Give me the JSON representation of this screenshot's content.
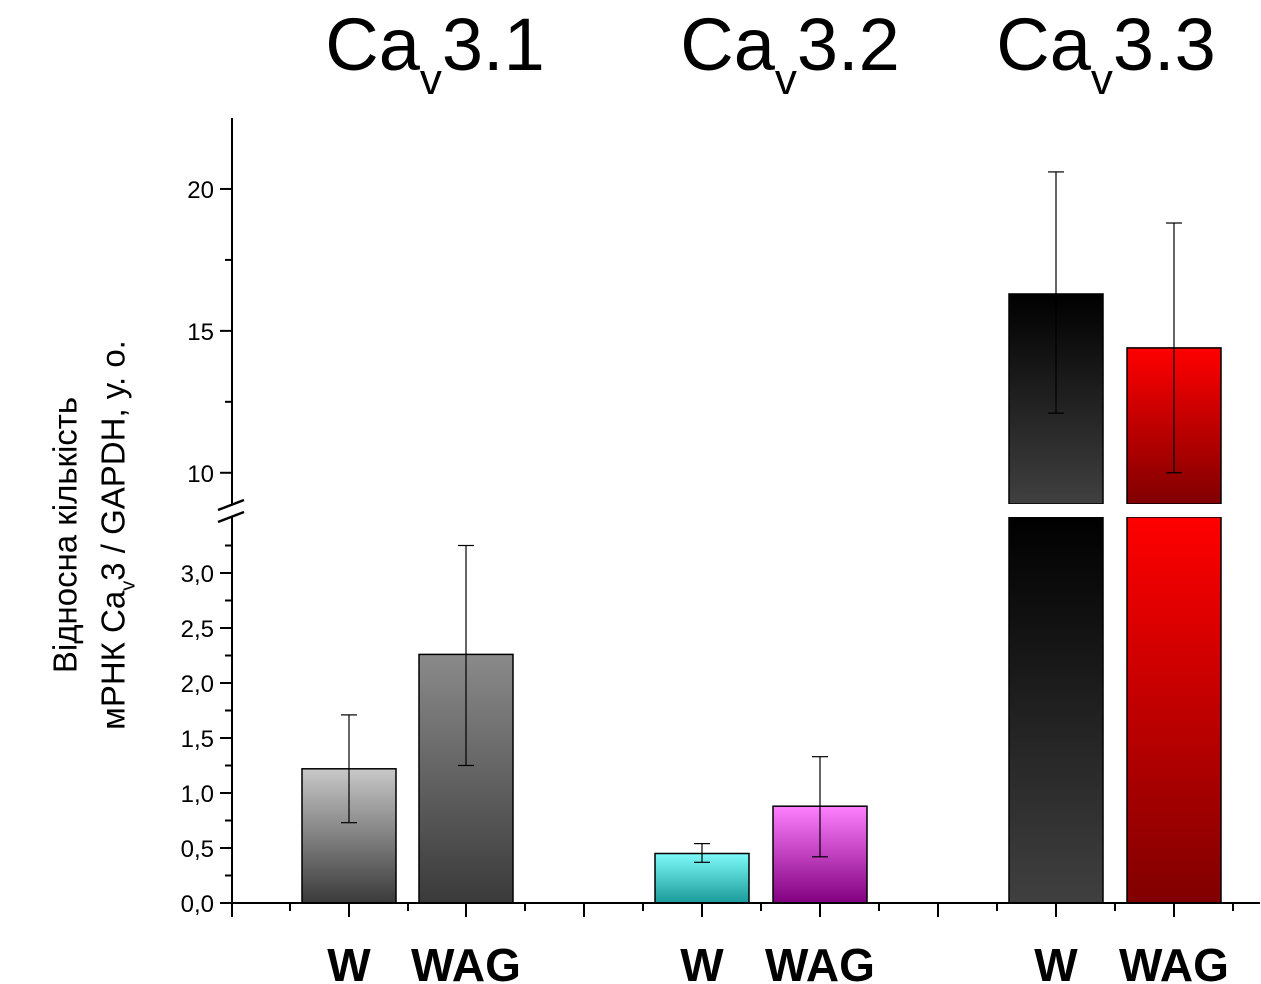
{
  "chart_data": {
    "type": "bar",
    "ylabel": {
      "line1": "Відносна кількість",
      "line2_pre": "мРНК Ca",
      "line2_sub": "v",
      "line2_post": "3 / GAPDH, у. о."
    },
    "groups": [
      {
        "title_main": "Ca",
        "title_sub": "v",
        "title_post": "3.1"
      },
      {
        "title_main": "Ca",
        "title_sub": "v",
        "title_post": "3.2"
      },
      {
        "title_main": "Ca",
        "title_sub": "v",
        "title_post": "3.3"
      }
    ],
    "categories": [
      "W",
      "WAG",
      "W",
      "WAG",
      "W",
      "WAG"
    ],
    "bars": [
      {
        "group": 0,
        "label": "W",
        "value": 1.22,
        "error_low": 0.73,
        "error_high": 1.71,
        "color_top": "#c8c8c8",
        "color_bottom": "#3a3a3a"
      },
      {
        "group": 0,
        "label": "WAG",
        "value": 2.26,
        "error_low": 1.25,
        "error_high": 3.25,
        "color_top": "#8a8a8a",
        "color_bottom": "#3a3a3a"
      },
      {
        "group": 1,
        "label": "W",
        "value": 0.45,
        "error_low": 0.37,
        "error_high": 0.54,
        "color_top": "#7ffafa",
        "color_bottom": "#1a9a9a"
      },
      {
        "group": 1,
        "label": "WAG",
        "value": 0.88,
        "error_low": 0.42,
        "error_high": 1.33,
        "color_top": "#ff80ff",
        "color_bottom": "#800080"
      },
      {
        "group": 2,
        "label": "W",
        "value": 16.3,
        "error_low": 12.1,
        "error_high": 20.6,
        "color_top": "#000000",
        "color_bottom": "#404040"
      },
      {
        "group": 2,
        "label": "WAG",
        "value": 14.4,
        "error_low": 10.0,
        "error_high": 18.8,
        "color_top": "#ff0000",
        "color_bottom": "#800000"
      }
    ],
    "axis_lower": {
      "range": [
        0,
        3.4
      ],
      "ticks": [
        "0,0",
        "0,5",
        "1,0",
        "1,5",
        "2,0",
        "2,5",
        "3,0"
      ],
      "tick_values": [
        0,
        0.5,
        1.0,
        1.5,
        2.0,
        2.5,
        3.0
      ]
    },
    "axis_upper": {
      "range": [
        8.9,
        22.5
      ],
      "ticks": [
        "10",
        "15",
        "20"
      ],
      "tick_values": [
        10,
        15,
        20
      ]
    },
    "axis_break": true,
    "grid": false
  }
}
